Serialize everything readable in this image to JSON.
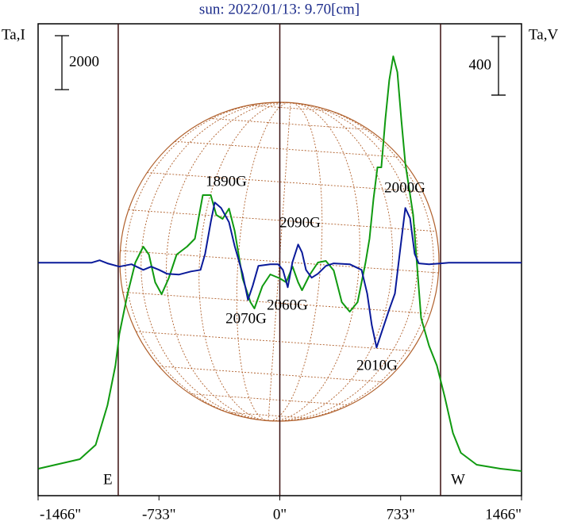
{
  "chart_data": {
    "type": "line",
    "title": "sun: 2022/01/13: 9.70[cm]",
    "y_label": "Ta,I",
    "y2_label": "Ta,V",
    "ybar": 2000,
    "y2bar": 400,
    "xlim": [
      -1466,
      1466
    ],
    "xticks": [
      {
        "value": -1466,
        "label": "-1466\""
      },
      {
        "value": -733,
        "label": "-733\""
      },
      {
        "value": 0,
        "label": "0\""
      },
      {
        "value": 733,
        "label": "733\""
      },
      {
        "value": 1466,
        "label": "1466\""
      }
    ],
    "ylim": [
      -1000,
      16500
    ],
    "y2lim": [
      -1590,
      1630
    ],
    "vlines": [
      -980,
      0,
      975
    ],
    "limb_labels": [
      "E",
      "W"
    ],
    "annotations": [
      "1890G",
      "2090G",
      "2000G",
      "2070G",
      "2060G",
      "2010G"
    ],
    "series": [
      {
        "color": "#109a10",
        "x": [
          -1464,
          -1213,
          -1117,
          -1045,
          -997,
          -973,
          -924,
          -876,
          -828,
          -794,
          -756,
          -717,
          -674,
          -626,
          -563,
          -515,
          -467,
          -419,
          -385,
          -347,
          -308,
          -274,
          -226,
          -178,
          -154,
          -106,
          -58,
          0,
          39,
          77,
          111,
          135,
          183,
          231,
          279,
          327,
          376,
          424,
          472,
          520,
          544,
          568,
          592,
          616,
          640,
          664,
          688,
          713,
          737,
          761,
          809,
          857,
          905,
          953,
          1001,
          1050,
          1098,
          1194,
          1338,
          1466
        ],
        "values": [
          0,
          353,
          882,
          2353,
          3824,
          5000,
          6470,
          7647,
          8235,
          7941,
          6911,
          6470,
          7059,
          7941,
          8235,
          8529,
          10147,
          10147,
          9412,
          9264,
          9647,
          8823,
          7059,
          6176,
          5941,
          6764,
          7206,
          7059,
          6911,
          7500,
          6911,
          6617,
          7206,
          7647,
          7706,
          7353,
          6176,
          5823,
          6176,
          7647,
          8529,
          10000,
          11176,
          11176,
          12941,
          14412,
          15294,
          14706,
          12941,
          11323,
          9412,
          5588,
          4559,
          3824,
          2647,
          1324,
          588,
          147,
          0,
          -88
        ]
      },
      {
        "color": "#0a1a9a",
        "axis": "y2",
        "x": [
          -1464,
          -1141,
          -1093,
          -1045,
          -973,
          -900,
          -828,
          -780,
          -732,
          -684,
          -611,
          -539,
          -481,
          -453,
          -419,
          -395,
          -356,
          -308,
          -274,
          -226,
          -193,
          -164,
          -130,
          -58,
          -10,
          19,
          48,
          77,
          111,
          135,
          159,
          193,
          231,
          279,
          327,
          424,
          496,
          530,
          558,
          587,
          616,
          664,
          698,
          727,
          761,
          790,
          818,
          843,
          905,
          977,
          1025,
          1466
        ],
        "values": [
          0,
          0,
          16,
          -5,
          -27,
          -11,
          -49,
          -27,
          -49,
          -76,
          -81,
          -60,
          -49,
          60,
          276,
          411,
          373,
          276,
          114,
          -76,
          -254,
          -157,
          -22,
          -11,
          -11,
          -49,
          -168,
          5,
          124,
          70,
          -49,
          -103,
          -76,
          -22,
          -5,
          -11,
          -49,
          -211,
          -427,
          -579,
          -481,
          -319,
          -211,
          60,
          373,
          303,
          60,
          -5,
          -11,
          -5,
          0,
          0
        ]
      }
    ]
  }
}
